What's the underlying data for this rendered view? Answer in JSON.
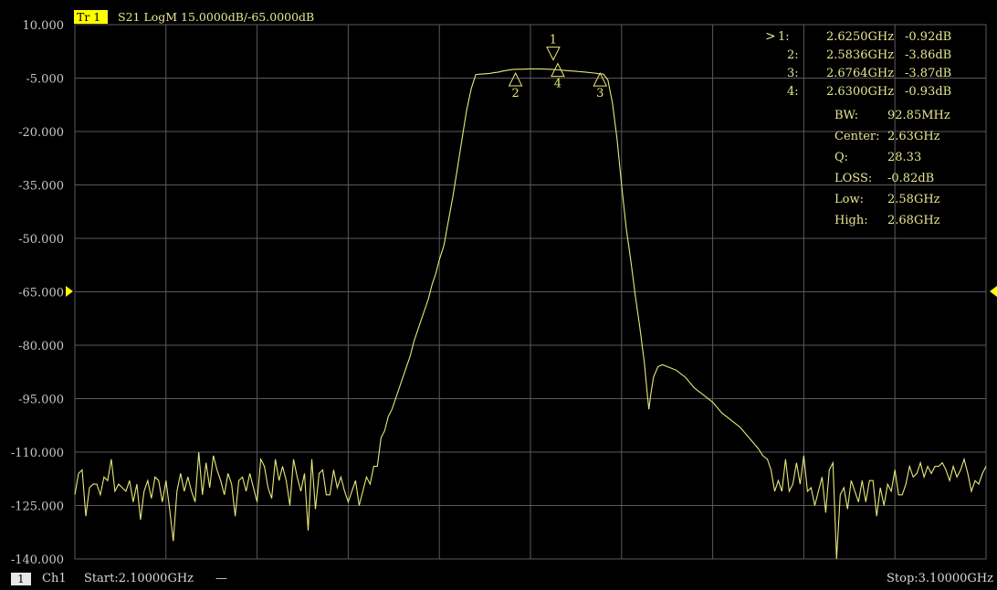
{
  "trace_header": {
    "tag": "Tr 1",
    "desc": "S21 LogM 15.0000dB/-65.0000dB"
  },
  "colors": {
    "trace": "#e8e87a",
    "tag_bg": "#ffff00",
    "grid": "#5a5a5a",
    "ref_marker": "#ffff00",
    "text": "#c8c8c8",
    "readout": "#e6e690"
  },
  "icons": {
    "ref_left": "ref-level-left-arrow-icon",
    "ref_right": "ref-level-right-arrow-icon"
  },
  "marker_table": [
    {
      "active": ">",
      "id": "1:",
      "freq": "2.6250GHz",
      "val": "-0.92dB"
    },
    {
      "active": "",
      "id": "2:",
      "freq": "2.5836GHz",
      "val": "-3.86dB"
    },
    {
      "active": "",
      "id": "3:",
      "freq": "2.6764GHz",
      "val": "-3.87dB"
    },
    {
      "active": "",
      "id": "4:",
      "freq": "2.6300GHz",
      "val": "-0.93dB"
    }
  ],
  "filter_stats": [
    {
      "label": "BW:",
      "value": "92.85MHz"
    },
    {
      "label": "Center:",
      "value": "2.63GHz"
    },
    {
      "label": "Q:",
      "value": "28.33"
    },
    {
      "label": "LOSS:",
      "value": "-0.82dB"
    },
    {
      "label": "Low:",
      "value": "2.58GHz"
    },
    {
      "label": "High:",
      "value": "2.68GHz"
    }
  ],
  "footer": {
    "channel_box": "1",
    "channel": "Ch1",
    "start": "Start:2.10000GHz",
    "start_dash": "—",
    "stop": "Stop:3.10000GHz"
  },
  "chart_data": {
    "type": "line",
    "title": "S21 LogM 15.0000dB/-65.0000dB",
    "xlabel": "",
    "ylabel": "",
    "xlim": [
      2.1,
      3.1
    ],
    "ylim": [
      -140,
      10
    ],
    "yticks": [
      "10.000",
      "-5.000",
      "-20.000",
      "-35.000",
      "-50.000",
      "-65.000",
      "-80.000",
      "-95.000",
      "-110.000",
      "-125.000",
      "-140.000"
    ],
    "ytick_values": [
      10,
      -5,
      -20,
      -35,
      -50,
      -65,
      -80,
      -95,
      -110,
      -125,
      -140
    ],
    "x_divisions": 10,
    "grid": true,
    "reference_level": -65,
    "markers": [
      {
        "label": "1",
        "x": 2.625,
        "y": -0.92,
        "style": "down"
      },
      {
        "label": "2",
        "x": 2.5836,
        "y": -3.86,
        "style": "up"
      },
      {
        "label": "3",
        "x": 2.6764,
        "y": -3.87,
        "style": "up"
      },
      {
        "label": "4",
        "x": 2.63,
        "y": -0.93,
        "style": "up"
      }
    ],
    "series": [
      {
        "x": [
          2.1,
          2.104,
          2.108,
          2.112,
          2.116,
          2.12,
          2.124,
          2.128,
          2.132,
          2.136,
          2.14,
          2.144,
          2.148,
          2.152,
          2.156,
          2.16,
          2.164,
          2.168,
          2.172,
          2.176,
          2.18,
          2.184,
          2.188,
          2.192,
          2.196,
          2.2,
          2.204,
          2.208,
          2.212,
          2.216,
          2.22,
          2.224,
          2.228,
          2.232,
          2.236,
          2.24,
          2.244,
          2.248,
          2.252,
          2.256,
          2.26,
          2.264,
          2.268,
          2.272,
          2.276,
          2.28,
          2.284,
          2.288,
          2.292,
          2.296,
          2.3,
          2.304,
          2.308,
          2.312,
          2.316,
          2.32,
          2.324,
          2.328,
          2.332,
          2.336,
          2.34,
          2.344,
          2.348,
          2.352,
          2.356,
          2.36,
          2.364,
          2.368,
          2.372,
          2.376,
          2.38,
          2.384,
          2.388,
          2.392,
          2.396,
          2.4,
          2.404,
          2.408,
          2.412,
          2.416,
          2.42,
          2.424,
          2.428,
          2.432,
          2.436,
          2.44,
          2.444,
          2.448,
          2.452,
          2.456,
          2.46,
          2.464,
          2.468,
          2.472,
          2.476,
          2.48,
          2.484,
          2.488,
          2.492,
          2.496,
          2.5,
          2.505,
          2.51,
          2.515,
          2.52,
          2.525,
          2.53,
          2.535,
          2.54,
          2.545,
          2.55,
          2.555,
          2.56,
          2.565,
          2.57,
          2.575,
          2.58,
          2.585,
          2.59,
          2.6,
          2.61,
          2.62,
          2.625,
          2.63,
          2.64,
          2.65,
          2.66,
          2.67,
          2.676,
          2.68,
          2.685,
          2.69,
          2.695,
          2.7,
          2.705,
          2.71,
          2.715,
          2.72,
          2.725,
          2.728,
          2.73,
          2.732,
          2.735,
          2.74,
          2.745,
          2.75,
          2.76,
          2.77,
          2.78,
          2.79,
          2.8,
          2.81,
          2.82,
          2.83,
          2.84,
          2.85,
          2.855,
          2.86,
          2.864,
          2.868,
          2.872,
          2.876,
          2.88,
          2.884,
          2.888,
          2.892,
          2.896,
          2.9,
          2.904,
          2.908,
          2.912,
          2.916,
          2.92,
          2.924,
          2.928,
          2.932,
          2.936,
          2.94,
          2.944,
          2.948,
          2.952,
          2.956,
          2.96,
          2.964,
          2.968,
          2.972,
          2.976,
          2.98,
          2.984,
          2.988,
          2.992,
          2.996,
          3.0,
          3.004,
          3.008,
          3.012,
          3.016,
          3.02,
          3.024,
          3.028,
          3.032,
          3.036,
          3.04,
          3.044,
          3.048,
          3.052,
          3.056,
          3.06,
          3.064,
          3.068,
          3.072,
          3.076,
          3.08,
          3.084,
          3.088,
          3.092,
          3.096,
          3.1
        ],
        "values": [
          -122,
          -116,
          -115,
          -128,
          -120,
          -119,
          -119,
          -122,
          -117,
          -118,
          -112,
          -121,
          -119,
          -120,
          -121,
          -118,
          -124,
          -119,
          -129,
          -121,
          -118,
          -123,
          -117,
          -118,
          -124,
          -118,
          -126,
          -135,
          -121,
          -116,
          -121,
          -117,
          -121,
          -124,
          -110,
          -122,
          -113,
          -120,
          -111,
          -115,
          -118,
          -122,
          -116,
          -119,
          -128,
          -118,
          -117,
          -121,
          -116,
          -120,
          -124,
          -112,
          -114,
          -120,
          -123,
          -112,
          -118,
          -114,
          -118,
          -125,
          -112,
          -117,
          -121,
          -116,
          -132,
          -112,
          -126,
          -116,
          -115,
          -122,
          -122,
          -115,
          -120,
          -117,
          -121,
          -124,
          -121,
          -118,
          -125,
          -121,
          -117,
          -119,
          -114,
          -114,
          -106,
          -104,
          -100,
          -98,
          -95,
          -92,
          -89,
          -86,
          -83,
          -79,
          -76,
          -73,
          -70,
          -67,
          -63,
          -60,
          -56,
          -52,
          -45,
          -38,
          -30,
          -22,
          -14,
          -8,
          -4,
          -3.9,
          -3.8,
          -3.7,
          -3.5,
          -3.3,
          -3.0,
          -2.8,
          -2.6,
          -2.5,
          -2.5,
          -2.4,
          -2.4,
          -2.5,
          -2.6,
          -2.7,
          -2.9,
          -3.1,
          -3.3,
          -3.6,
          -3.8,
          -3.9,
          -5.5,
          -12,
          -22,
          -35,
          -47,
          -56,
          -66,
          -75,
          -85,
          -93,
          -98,
          -94,
          -89,
          -86,
          -85.5,
          -86,
          -87,
          -89,
          -92,
          -94,
          -96,
          -99,
          -101,
          -103,
          -106,
          -109,
          -111,
          -112,
          -115,
          -121,
          -118,
          -121,
          -112,
          -121,
          -119,
          -113,
          -119,
          -111,
          -121,
          -120,
          -125,
          -121,
          -117,
          -127,
          -115,
          -113,
          -140,
          -122,
          -120,
          -126,
          -118,
          -121,
          -124,
          -118,
          -124,
          -118,
          -118,
          -128,
          -120,
          -125,
          -119,
          -121,
          -115,
          -122,
          -122,
          -119,
          -114,
          -117,
          -116,
          -113,
          -117,
          -114,
          -116,
          -114,
          -114,
          -113,
          -115,
          -118,
          -114,
          -117,
          -115,
          -112,
          -116,
          -121,
          -118,
          -119,
          -116,
          -114
        ]
      }
    ]
  }
}
